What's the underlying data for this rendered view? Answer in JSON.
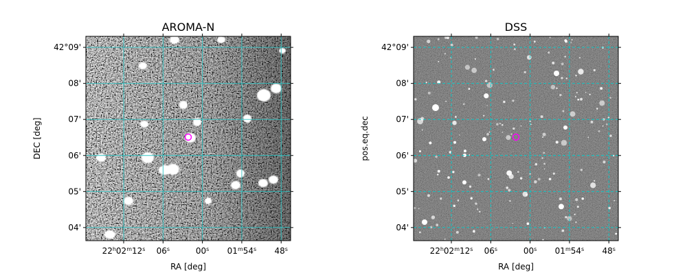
{
  "chart_data": [
    {
      "type": "image",
      "title": "AROMA-N",
      "xlabel": "RA [deg]",
      "ylabel": "DEC [deg]",
      "xlim": [
        330.574,
        330.444
      ],
      "ylim": [
        42.0606,
        42.1551
      ],
      "xticks": [
        {
          "value": 330.55,
          "label": "22h02m12s"
        },
        {
          "value": 330.525,
          "label": "06s"
        },
        {
          "value": 330.5,
          "label": "00s"
        },
        {
          "value": 330.475,
          "label": "01m54s"
        },
        {
          "value": 330.45,
          "label": "48s"
        }
      ],
      "yticks": [
        {
          "value": 42.15,
          "label": "42°09'"
        },
        {
          "value": 42.13333,
          "label": "08'"
        },
        {
          "value": 42.11667,
          "label": "07'"
        },
        {
          "value": 42.1,
          "label": "06'"
        },
        {
          "value": 42.08333,
          "label": "05'"
        },
        {
          "value": 42.06667,
          "label": "04'"
        }
      ],
      "grid": true,
      "grid_color": "#2ec4c4",
      "grid_linestyle": "solid",
      "colormap": "gray",
      "marker": {
        "x": 330.509,
        "y": 42.1085,
        "color": "#ff00ff"
      }
    },
    {
      "type": "image",
      "title": "DSS",
      "xlabel": "RA [deg]",
      "ylabel": "pos.eq.dec",
      "xlim": [
        330.574,
        330.444
      ],
      "ylim": [
        42.0606,
        42.1551
      ],
      "xticks": [
        {
          "value": 330.55,
          "label": "22h02m12s"
        },
        {
          "value": 330.525,
          "label": "06s"
        },
        {
          "value": 330.5,
          "label": "00s"
        },
        {
          "value": 330.475,
          "label": "01m54s"
        },
        {
          "value": 330.45,
          "label": "48s"
        }
      ],
      "yticks": [
        {
          "value": 42.15,
          "label": "42°09'"
        },
        {
          "value": 42.13333,
          "label": "08'"
        },
        {
          "value": 42.11667,
          "label": "07'"
        },
        {
          "value": 42.1,
          "label": "06'"
        },
        {
          "value": 42.08333,
          "label": "05'"
        },
        {
          "value": 42.06667,
          "label": "04'"
        }
      ],
      "grid": true,
      "grid_color": "#00cccc",
      "grid_linestyle": "dashed",
      "colormap": "gray",
      "marker": {
        "x": 330.509,
        "y": 42.1085,
        "color": "#ff00ff"
      }
    }
  ]
}
